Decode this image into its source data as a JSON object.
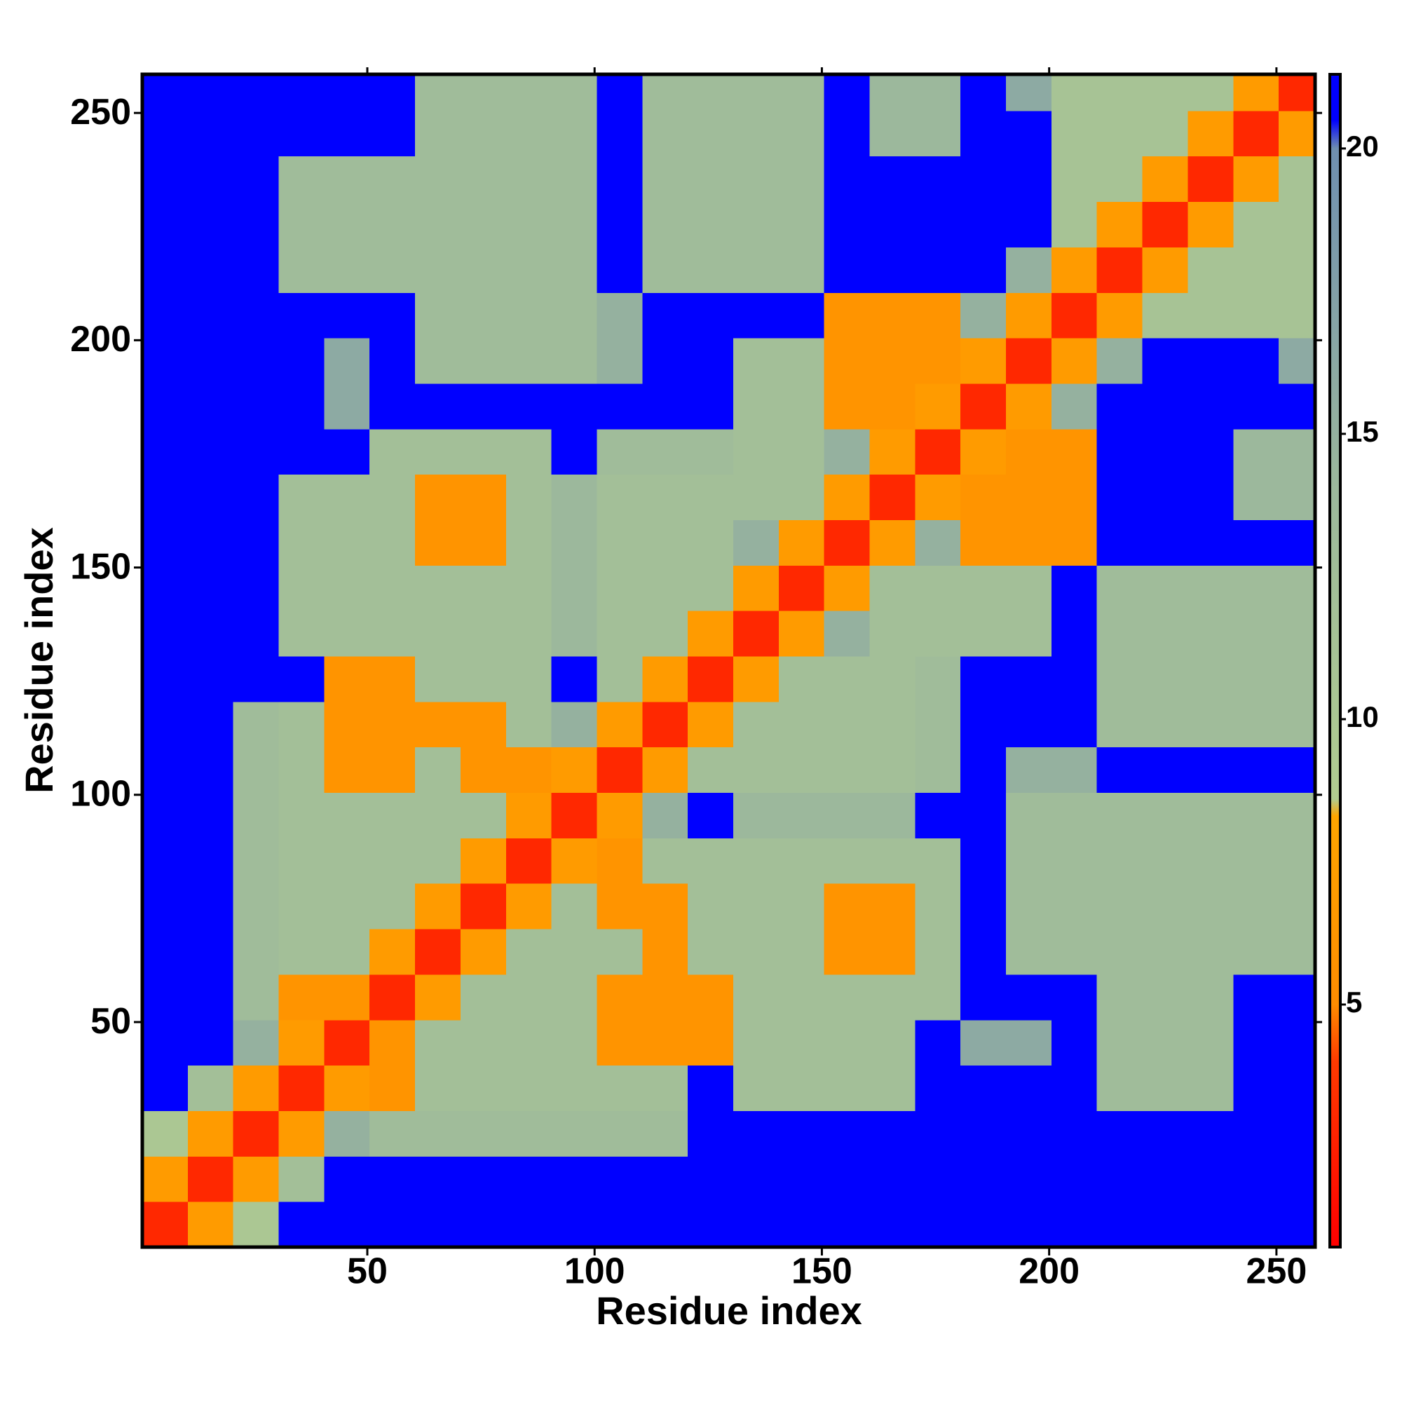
{
  "chart_data": {
    "type": "heatmap",
    "xlabel": "Residue index",
    "ylabel": "Residue index",
    "xlim": [
      0.5,
      258.5
    ],
    "ylim": [
      0.5,
      258.5
    ],
    "xticks": [
      50,
      100,
      150,
      200,
      250
    ],
    "yticks": [
      50,
      100,
      150,
      200,
      250
    ],
    "xbins": [
      0.5,
      10.5,
      20.5,
      30.5,
      40.5,
      50.5,
      60.5,
      70.5,
      80.5,
      90.5,
      100.5,
      110.5,
      120.5,
      130.5,
      140.5,
      150.5,
      160.5,
      170.5,
      180.5,
      190.5,
      200.5,
      210.5,
      220.5,
      230.5,
      240.5,
      250.5,
      258.5
    ],
    "ybins": [
      0.5,
      10.5,
      20.5,
      30.5,
      40.5,
      50.5,
      60.5,
      70.5,
      80.5,
      90.5,
      100.5,
      110.5,
      120.5,
      130.5,
      140.5,
      150.5,
      160.5,
      170.5,
      180.5,
      190.5,
      200.5,
      210.5,
      220.5,
      230.5,
      240.5,
      250.5,
      258.5
    ],
    "z": [
      [
        3,
        7,
        10,
        22,
        22,
        22,
        22,
        22,
        22,
        22,
        22,
        22,
        22,
        22,
        22,
        22,
        22,
        22,
        22,
        22,
        22,
        22,
        22,
        22,
        22,
        22
      ],
      [
        7,
        3,
        7,
        12,
        22,
        22,
        22,
        22,
        22,
        22,
        22,
        22,
        22,
        22,
        22,
        22,
        22,
        22,
        22,
        22,
        22,
        22,
        22,
        22,
        22,
        22
      ],
      [
        10,
        7,
        3,
        7,
        15,
        13,
        13,
        13,
        13,
        13,
        13,
        13,
        22,
        22,
        22,
        22,
        22,
        22,
        22,
        22,
        22,
        22,
        22,
        22,
        22,
        22
      ],
      [
        22,
        12,
        7,
        3,
        7,
        6,
        12,
        12,
        12,
        12,
        12,
        12,
        22,
        12,
        12,
        12,
        12,
        22,
        22,
        22,
        22,
        13,
        13,
        13,
        22,
        22
      ],
      [
        22,
        22,
        15,
        7,
        3,
        6,
        12,
        12,
        12,
        12,
        6,
        6,
        6,
        12,
        12,
        12,
        12,
        22,
        16,
        16,
        22,
        13,
        13,
        13,
        22,
        22
      ],
      [
        22,
        22,
        13,
        6,
        6,
        3,
        7,
        12,
        12,
        12,
        6,
        6,
        6,
        12,
        12,
        12,
        12,
        12,
        22,
        22,
        22,
        13,
        13,
        13,
        22,
        22
      ],
      [
        22,
        22,
        13,
        12,
        12,
        7,
        3,
        7,
        12,
        12,
        12,
        6,
        12,
        12,
        12,
        6,
        6,
        12,
        22,
        13,
        13,
        13,
        13,
        13,
        13,
        13
      ],
      [
        22,
        22,
        13,
        12,
        12,
        12,
        7,
        3,
        7,
        12,
        6,
        6,
        12,
        12,
        12,
        6,
        6,
        12,
        22,
        13,
        13,
        13,
        13,
        13,
        13,
        13
      ],
      [
        22,
        22,
        13,
        12,
        12,
        12,
        12,
        7,
        3,
        7,
        6,
        12,
        12,
        12,
        12,
        12,
        12,
        12,
        22,
        13,
        13,
        13,
        13,
        13,
        13,
        13
      ],
      [
        22,
        22,
        13,
        12,
        12,
        12,
        12,
        12,
        7,
        3,
        7,
        15,
        22,
        14,
        14,
        14,
        14,
        22,
        22,
        13,
        13,
        13,
        13,
        13,
        13,
        13
      ],
      [
        22,
        22,
        13,
        12,
        6,
        6,
        12,
        6,
        6,
        7,
        3,
        7,
        12,
        12,
        12,
        12,
        12,
        13,
        22,
        15,
        15,
        22,
        22,
        22,
        22,
        22
      ],
      [
        22,
        22,
        13,
        12,
        6,
        6,
        6,
        6,
        12,
        15,
        7,
        3,
        7,
        12,
        12,
        12,
        12,
        13,
        22,
        22,
        22,
        13,
        13,
        13,
        13,
        13
      ],
      [
        22,
        22,
        22,
        22,
        6,
        6,
        12,
        12,
        12,
        22,
        12,
        7,
        3,
        7,
        12,
        12,
        12,
        13,
        22,
        22,
        22,
        13,
        13,
        13,
        13,
        13
      ],
      [
        22,
        22,
        22,
        12,
        12,
        12,
        12,
        12,
        12,
        14,
        12,
        12,
        7,
        3,
        7,
        15,
        12,
        12,
        12,
        12,
        22,
        13,
        13,
        13,
        13,
        13
      ],
      [
        22,
        22,
        22,
        12,
        12,
        12,
        12,
        12,
        12,
        14,
        12,
        12,
        12,
        7,
        3,
        7,
        12,
        12,
        12,
        12,
        22,
        13,
        13,
        13,
        13,
        13
      ],
      [
        22,
        22,
        22,
        12,
        12,
        12,
        6,
        6,
        12,
        14,
        12,
        12,
        12,
        15,
        7,
        3,
        7,
        15,
        6,
        6,
        6,
        22,
        22,
        22,
        22,
        22
      ],
      [
        22,
        22,
        22,
        12,
        12,
        12,
        6,
        6,
        12,
        14,
        12,
        12,
        12,
        12,
        12,
        7,
        3,
        7,
        6,
        6,
        6,
        22,
        22,
        22,
        14,
        14
      ],
      [
        22,
        22,
        22,
        22,
        22,
        12,
        12,
        12,
        12,
        22,
        13,
        13,
        13,
        12,
        12,
        15,
        7,
        3,
        7,
        6,
        6,
        22,
        22,
        22,
        14,
        14
      ],
      [
        22,
        22,
        22,
        22,
        16,
        22,
        22,
        22,
        22,
        22,
        22,
        22,
        22,
        12,
        12,
        6,
        6,
        7,
        3,
        7,
        15,
        22,
        22,
        22,
        22,
        22
      ],
      [
        22,
        22,
        22,
        22,
        16,
        22,
        13,
        13,
        13,
        13,
        15,
        22,
        22,
        12,
        12,
        6,
        6,
        6,
        7,
        3,
        7,
        15,
        22,
        22,
        22,
        16
      ],
      [
        22,
        22,
        22,
        22,
        22,
        22,
        13,
        13,
        13,
        13,
        15,
        22,
        22,
        22,
        22,
        6,
        6,
        6,
        15,
        7,
        3,
        7,
        11,
        11,
        11,
        11
      ],
      [
        22,
        22,
        22,
        13,
        13,
        13,
        13,
        13,
        13,
        13,
        22,
        13,
        13,
        13,
        13,
        22,
        22,
        22,
        22,
        15,
        7,
        3,
        7,
        11,
        11,
        11
      ],
      [
        22,
        22,
        22,
        13,
        13,
        13,
        13,
        13,
        13,
        13,
        22,
        13,
        13,
        13,
        13,
        22,
        22,
        22,
        22,
        22,
        11,
        7,
        3,
        7,
        11,
        11
      ],
      [
        22,
        22,
        22,
        13,
        13,
        13,
        13,
        13,
        13,
        13,
        22,
        13,
        13,
        13,
        13,
        22,
        22,
        22,
        22,
        22,
        11,
        11,
        7,
        3,
        7,
        11
      ],
      [
        22,
        22,
        22,
        22,
        22,
        22,
        13,
        13,
        13,
        13,
        22,
        13,
        13,
        13,
        13,
        22,
        14,
        14,
        22,
        22,
        11,
        11,
        11,
        7,
        3,
        7
      ],
      [
        22,
        22,
        22,
        22,
        22,
        22,
        13,
        13,
        13,
        13,
        22,
        13,
        13,
        13,
        13,
        22,
        14,
        14,
        22,
        16,
        11,
        11,
        11,
        11,
        7,
        3
      ]
    ],
    "clim": [
      0.75,
      21.3
    ],
    "cticks": [
      5,
      10,
      15,
      20
    ],
    "colorscale": [
      [
        0.75,
        "#ff0000"
      ],
      [
        4,
        "#ff3a00"
      ],
      [
        5,
        "#ff8c00"
      ],
      [
        8.3,
        "#ffa500"
      ],
      [
        8.6,
        "#b0cc90"
      ],
      [
        14,
        "#9cb89c"
      ],
      [
        20,
        "#6f8fb0"
      ],
      [
        20.5,
        "#0000ff"
      ],
      [
        21.3,
        "#0000ff"
      ]
    ]
  }
}
